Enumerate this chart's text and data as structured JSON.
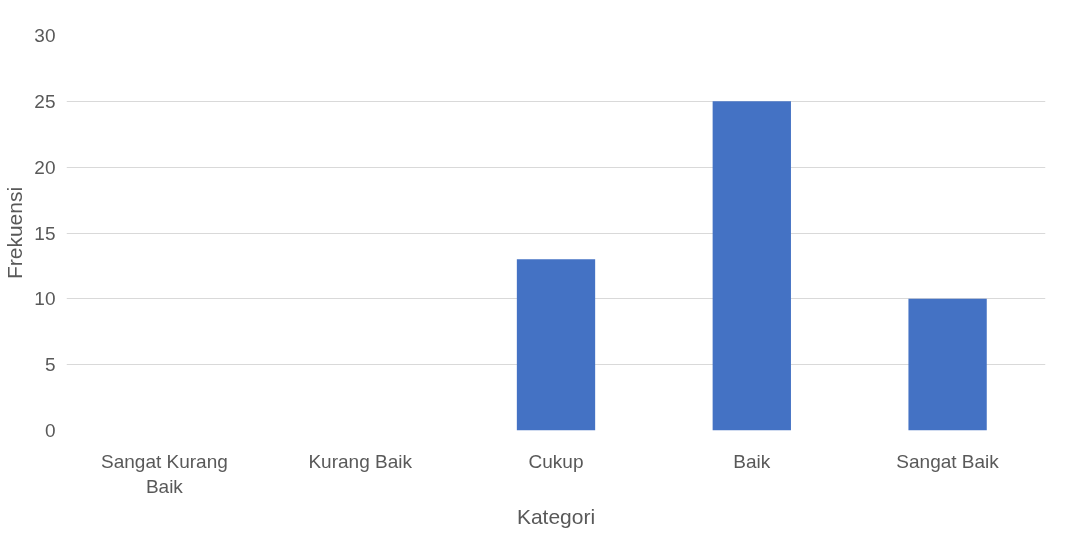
{
  "chart_data": {
    "type": "bar",
    "xlabel": "Kategori",
    "ylabel": "Frekuensi",
    "categories": [
      "Sangat Kurang Baik",
      "Kurang Baik",
      "Cukup",
      "Baik",
      "Sangat Baik"
    ],
    "values": [
      0,
      0,
      13,
      25,
      10
    ],
    "color": "#4472c4",
    "ylim": [
      0,
      30
    ],
    "yticks": [
      0,
      5,
      10,
      15,
      20,
      25,
      30
    ],
    "grid": "y"
  }
}
